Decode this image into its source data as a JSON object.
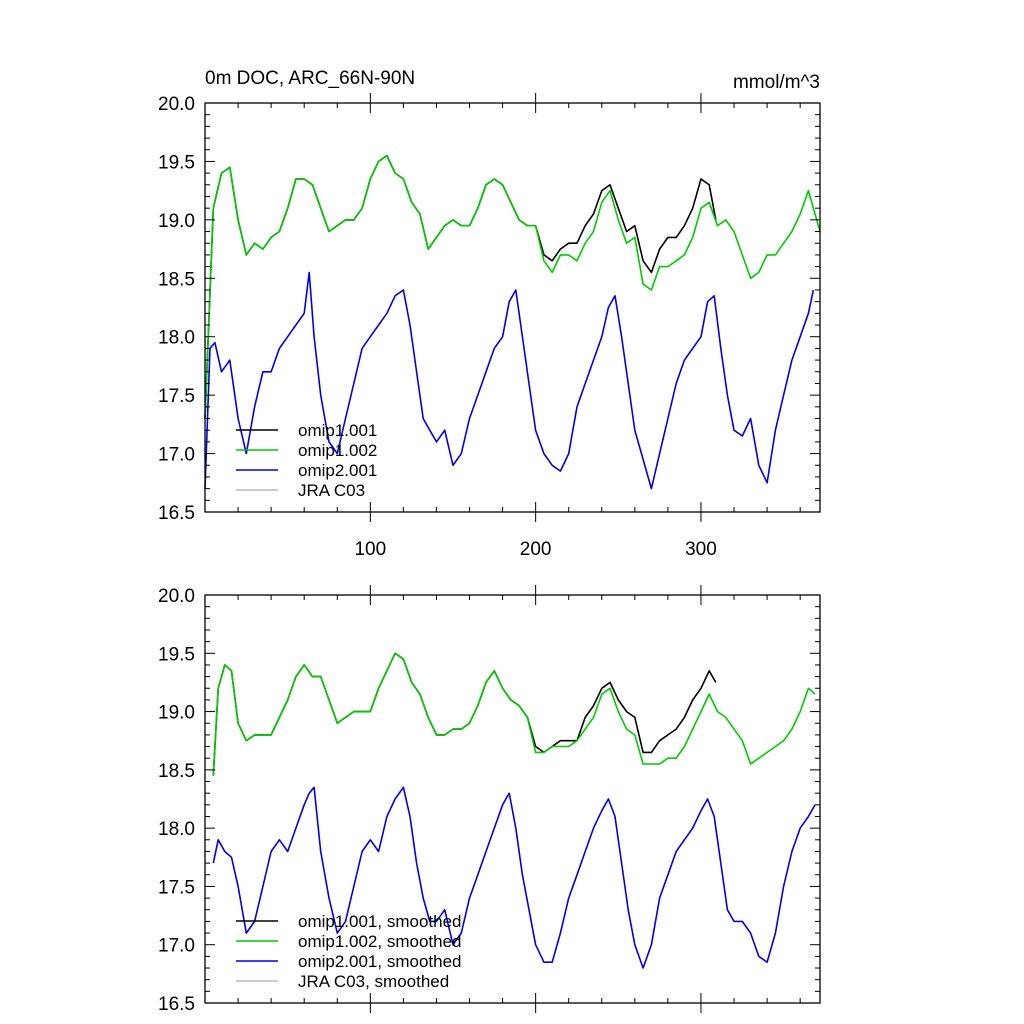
{
  "figure": {
    "title": "0m DOC, ARC_66N-90N",
    "units": "mmol/m^3"
  },
  "chart_data": [
    {
      "type": "line",
      "panel": "top",
      "title": "0m DOC, ARC_66N-90N",
      "right_label": "mmol/m^3",
      "xlim": [
        0,
        372
      ],
      "ylim": [
        16.5,
        20.0
      ],
      "x_ticks": [
        100,
        200,
        300
      ],
      "x_tick_labels": [
        "100",
        "200",
        "300"
      ],
      "y_ticks": [
        16.5,
        17.0,
        17.5,
        18.0,
        18.5,
        19.0,
        19.5,
        20.0
      ],
      "y_tick_labels": [
        "16.5",
        "17.0",
        "17.5",
        "18.0",
        "18.5",
        "19.0",
        "19.5",
        "20.0"
      ],
      "legend": [
        "omip1.001",
        "omip1.002",
        "omip2.001",
        "JRA C03"
      ],
      "series": [
        {
          "name": "omip1.001",
          "color": "#000000",
          "x": [
            0,
            5,
            10,
            15,
            20,
            25,
            30,
            35,
            40,
            45,
            50,
            55,
            60,
            65,
            70,
            75,
            80,
            85,
            90,
            95,
            100,
            105,
            110,
            115,
            120,
            125,
            130,
            135,
            140,
            145,
            150,
            155,
            160,
            165,
            170,
            175,
            180,
            185,
            190,
            195,
            200,
            205,
            210,
            215,
            220,
            225,
            230,
            235,
            240,
            245,
            250,
            255,
            260,
            265,
            270,
            275,
            280,
            285,
            290,
            295,
            300,
            305,
            309
          ],
          "values": [
            17.3,
            19.1,
            19.4,
            19.45,
            19.0,
            18.7,
            18.8,
            18.75,
            18.85,
            18.9,
            19.1,
            19.35,
            19.35,
            19.3,
            19.1,
            18.9,
            18.95,
            19.0,
            19.0,
            19.1,
            19.35,
            19.5,
            19.55,
            19.4,
            19.35,
            19.15,
            19.05,
            18.75,
            18.85,
            18.95,
            19.0,
            18.95,
            18.95,
            19.1,
            19.3,
            19.35,
            19.3,
            19.15,
            19.0,
            18.95,
            18.95,
            18.7,
            18.65,
            18.75,
            18.8,
            18.8,
            18.95,
            19.05,
            19.25,
            19.3,
            19.1,
            18.9,
            18.95,
            18.65,
            18.55,
            18.75,
            18.85,
            18.85,
            18.95,
            19.1,
            19.35,
            19.3,
            19.0
          ]
        },
        {
          "name": "omip1.002",
          "color": "#00cc00",
          "x": [
            0,
            5,
            10,
            15,
            20,
            25,
            30,
            35,
            40,
            45,
            50,
            55,
            60,
            65,
            70,
            75,
            80,
            85,
            90,
            95,
            100,
            105,
            110,
            115,
            120,
            125,
            130,
            135,
            140,
            145,
            150,
            155,
            160,
            165,
            170,
            175,
            180,
            185,
            190,
            195,
            200,
            205,
            210,
            215,
            220,
            225,
            230,
            235,
            240,
            245,
            250,
            255,
            260,
            265,
            270,
            275,
            280,
            285,
            290,
            295,
            300,
            305,
            310,
            315,
            320,
            325,
            330,
            335,
            340,
            345,
            350,
            355,
            360,
            365,
            372
          ],
          "values": [
            17.3,
            19.1,
            19.4,
            19.45,
            19.0,
            18.7,
            18.8,
            18.75,
            18.85,
            18.9,
            19.1,
            19.35,
            19.35,
            19.3,
            19.1,
            18.9,
            18.95,
            19.0,
            19.0,
            19.1,
            19.35,
            19.5,
            19.55,
            19.4,
            19.35,
            19.15,
            19.05,
            18.75,
            18.85,
            18.95,
            19.0,
            18.95,
            18.95,
            19.1,
            19.3,
            19.35,
            19.3,
            19.15,
            19.0,
            18.95,
            18.95,
            18.65,
            18.55,
            18.7,
            18.7,
            18.65,
            18.8,
            18.9,
            19.15,
            19.25,
            19.0,
            18.8,
            18.85,
            18.45,
            18.4,
            18.6,
            18.6,
            18.65,
            18.7,
            18.85,
            19.1,
            19.15,
            18.95,
            19.0,
            18.9,
            18.7,
            18.5,
            18.55,
            18.7,
            18.7,
            18.8,
            18.9,
            19.05,
            19.25,
            18.9
          ]
        },
        {
          "name": "omip2.001",
          "color": "#0000ee",
          "x": [
            0,
            3,
            6,
            10,
            15,
            20,
            25,
            30,
            35,
            40,
            45,
            50,
            55,
            60,
            63,
            66,
            70,
            75,
            80,
            85,
            90,
            95,
            100,
            105,
            110,
            115,
            120,
            124,
            128,
            132,
            136,
            140,
            145,
            150,
            155,
            160,
            165,
            170,
            175,
            180,
            184,
            188,
            192,
            196,
            200,
            205,
            210,
            215,
            220,
            225,
            230,
            235,
            240,
            244,
            248,
            252,
            256,
            260,
            265,
            270,
            275,
            280,
            285,
            290,
            295,
            300,
            304,
            308,
            312,
            316,
            320,
            325,
            330,
            335,
            340,
            345,
            350,
            355,
            360,
            365,
            368
          ],
          "values": [
            16.7,
            17.9,
            17.95,
            17.7,
            17.8,
            17.3,
            17.0,
            17.4,
            17.7,
            17.7,
            17.9,
            18.0,
            18.1,
            18.2,
            18.55,
            18.0,
            17.5,
            17.1,
            17.0,
            17.3,
            17.6,
            17.9,
            18.0,
            18.1,
            18.2,
            18.35,
            18.4,
            18.1,
            17.7,
            17.3,
            17.2,
            17.1,
            17.2,
            16.9,
            17.0,
            17.3,
            17.5,
            17.7,
            17.9,
            18.0,
            18.3,
            18.4,
            18.0,
            17.6,
            17.2,
            17.0,
            16.9,
            16.85,
            17.0,
            17.4,
            17.6,
            17.8,
            18.0,
            18.25,
            18.35,
            18.0,
            17.6,
            17.2,
            16.95,
            16.7,
            17.0,
            17.3,
            17.6,
            17.8,
            17.9,
            18.0,
            18.3,
            18.35,
            17.9,
            17.5,
            17.2,
            17.15,
            17.3,
            16.9,
            16.75,
            17.2,
            17.5,
            17.8,
            18.0,
            18.2,
            18.4
          ]
        },
        {
          "name": "JRA C03",
          "color": "#bbbbbb",
          "x": [],
          "values": []
        }
      ]
    },
    {
      "type": "line",
      "panel": "bottom",
      "xlim": [
        0,
        372
      ],
      "ylim": [
        16.5,
        20.0
      ],
      "x_ticks": [
        100,
        200,
        300
      ],
      "x_tick_labels": [
        "",
        "",
        ""
      ],
      "y_ticks": [
        16.5,
        17.0,
        17.5,
        18.0,
        18.5,
        19.0,
        19.5,
        20.0
      ],
      "y_tick_labels": [
        "16.5",
        "17.0",
        "17.5",
        "18.0",
        "18.5",
        "19.0",
        "19.5",
        "20.0"
      ],
      "legend": [
        "omip1.001, smoothed",
        "omip1.002, smoothed",
        "omip2.001, smoothed",
        "JRA C03, smoothed"
      ],
      "series": [
        {
          "name": "omip1.001, smoothed",
          "color": "#000000",
          "x": [
            5,
            8,
            12,
            16,
            20,
            25,
            30,
            35,
            40,
            45,
            50,
            55,
            60,
            65,
            70,
            75,
            80,
            85,
            90,
            95,
            100,
            105,
            110,
            115,
            120,
            125,
            130,
            135,
            140,
            145,
            150,
            155,
            160,
            165,
            170,
            175,
            180,
            185,
            190,
            195,
            200,
            205,
            210,
            215,
            220,
            225,
            230,
            235,
            240,
            245,
            250,
            255,
            260,
            265,
            270,
            275,
            280,
            285,
            290,
            295,
            300,
            305,
            309
          ],
          "values": [
            18.45,
            19.2,
            19.4,
            19.35,
            18.9,
            18.75,
            18.8,
            18.8,
            18.8,
            18.95,
            19.1,
            19.3,
            19.4,
            19.3,
            19.3,
            19.1,
            18.9,
            18.95,
            19.0,
            19.0,
            19.0,
            19.2,
            19.35,
            19.5,
            19.45,
            19.25,
            19.15,
            18.95,
            18.8,
            18.8,
            18.85,
            18.85,
            18.9,
            19.05,
            19.25,
            19.35,
            19.2,
            19.1,
            19.05,
            18.95,
            18.7,
            18.65,
            18.7,
            18.75,
            18.75,
            18.75,
            18.95,
            19.05,
            19.2,
            19.25,
            19.1,
            19.0,
            18.95,
            18.65,
            18.65,
            18.75,
            18.8,
            18.85,
            18.95,
            19.1,
            19.2,
            19.35,
            19.25
          ]
        },
        {
          "name": "omip1.002, smoothed",
          "color": "#00cc00",
          "x": [
            5,
            8,
            12,
            16,
            20,
            25,
            30,
            35,
            40,
            45,
            50,
            55,
            60,
            65,
            70,
            75,
            80,
            85,
            90,
            95,
            100,
            105,
            110,
            115,
            120,
            125,
            130,
            135,
            140,
            145,
            150,
            155,
            160,
            165,
            170,
            175,
            180,
            185,
            190,
            195,
            200,
            205,
            210,
            215,
            220,
            225,
            230,
            235,
            240,
            245,
            250,
            255,
            260,
            265,
            270,
            275,
            280,
            285,
            290,
            295,
            300,
            305,
            310,
            315,
            320,
            325,
            330,
            335,
            340,
            345,
            350,
            355,
            360,
            365,
            369
          ],
          "values": [
            18.45,
            19.2,
            19.4,
            19.35,
            18.9,
            18.75,
            18.8,
            18.8,
            18.8,
            18.95,
            19.1,
            19.3,
            19.4,
            19.3,
            19.3,
            19.1,
            18.9,
            18.95,
            19.0,
            19.0,
            19.0,
            19.2,
            19.35,
            19.5,
            19.45,
            19.25,
            19.15,
            18.95,
            18.8,
            18.8,
            18.85,
            18.85,
            18.9,
            19.05,
            19.25,
            19.35,
            19.2,
            19.1,
            19.05,
            18.95,
            18.65,
            18.65,
            18.7,
            18.7,
            18.7,
            18.75,
            18.85,
            18.95,
            19.15,
            19.2,
            19.0,
            18.85,
            18.8,
            18.55,
            18.55,
            18.55,
            18.6,
            18.6,
            18.7,
            18.85,
            19.0,
            19.15,
            19.0,
            18.95,
            18.85,
            18.75,
            18.55,
            18.6,
            18.65,
            18.7,
            18.75,
            18.85,
            19.0,
            19.2,
            19.15
          ]
        },
        {
          "name": "omip2.001, smoothed",
          "color": "#0000ee",
          "x": [
            5,
            8,
            12,
            16,
            20,
            25,
            30,
            35,
            40,
            45,
            50,
            55,
            60,
            63,
            66,
            70,
            75,
            80,
            85,
            90,
            95,
            100,
            105,
            110,
            115,
            120,
            124,
            128,
            132,
            136,
            140,
            145,
            150,
            155,
            160,
            165,
            170,
            175,
            180,
            184,
            188,
            192,
            196,
            200,
            205,
            210,
            215,
            220,
            225,
            230,
            235,
            240,
            244,
            248,
            252,
            256,
            260,
            265,
            270,
            275,
            280,
            285,
            290,
            295,
            300,
            304,
            308,
            312,
            316,
            320,
            325,
            330,
            335,
            340,
            345,
            350,
            355,
            360,
            365,
            369
          ],
          "values": [
            17.7,
            17.9,
            17.8,
            17.75,
            17.5,
            17.1,
            17.2,
            17.5,
            17.8,
            17.9,
            17.8,
            18.0,
            18.2,
            18.3,
            18.35,
            17.8,
            17.4,
            17.1,
            17.2,
            17.5,
            17.8,
            17.9,
            17.8,
            18.1,
            18.25,
            18.35,
            18.1,
            17.7,
            17.4,
            17.2,
            17.2,
            17.3,
            17.0,
            17.1,
            17.4,
            17.6,
            17.8,
            18.0,
            18.2,
            18.3,
            18.0,
            17.6,
            17.3,
            17.0,
            16.85,
            16.85,
            17.1,
            17.4,
            17.6,
            17.8,
            18.0,
            18.15,
            18.25,
            18.1,
            17.7,
            17.3,
            17.0,
            16.8,
            17.0,
            17.4,
            17.6,
            17.8,
            17.9,
            18.0,
            18.15,
            18.25,
            18.1,
            17.7,
            17.3,
            17.2,
            17.2,
            17.1,
            16.9,
            16.85,
            17.1,
            17.5,
            17.8,
            18.0,
            18.1,
            18.2
          ]
        },
        {
          "name": "JRA C03, smoothed",
          "color": "#bbbbbb",
          "x": [],
          "values": []
        }
      ]
    }
  ]
}
